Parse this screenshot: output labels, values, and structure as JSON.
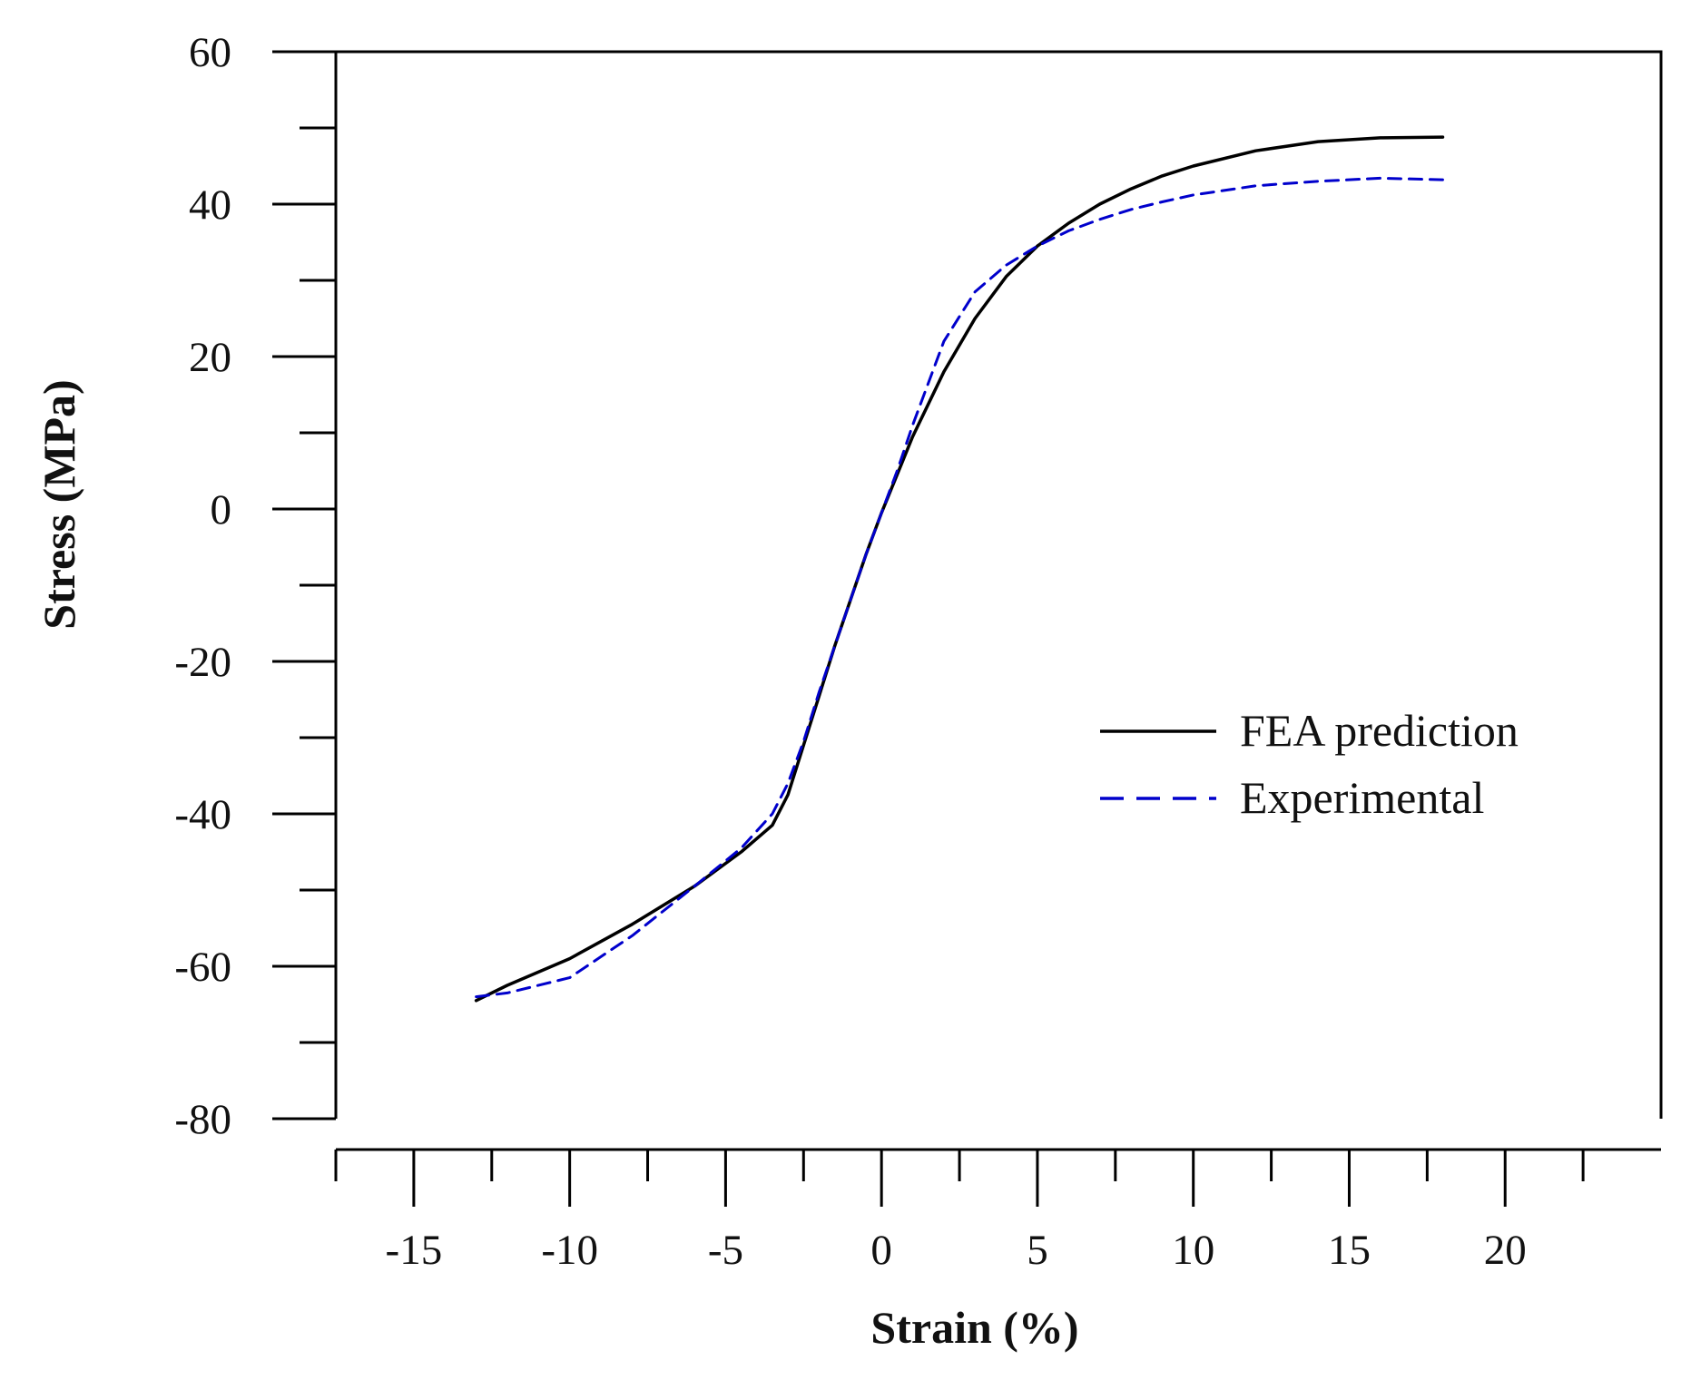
{
  "chart_data": {
    "type": "line",
    "title": "",
    "xlabel": "Strain (%)",
    "ylabel": "Stress (MPa)",
    "xlim": [
      -17.5,
      25
    ],
    "ylim": [
      -80,
      60
    ],
    "xticks_major": [
      -15,
      -10,
      -5,
      0,
      5,
      10,
      15,
      20
    ],
    "xticks_major_labels": [
      "-15",
      "-10",
      "-5",
      "0",
      "5",
      "10",
      "15",
      "20"
    ],
    "xticks_minor": [
      -17.5,
      -12.5,
      -7.5,
      -2.5,
      2.5,
      7.5,
      12.5,
      17.5,
      22.5
    ],
    "yticks_major": [
      -80,
      -60,
      -40,
      -20,
      0,
      20,
      40,
      60
    ],
    "yticks_major_labels": [
      "-80",
      "-60",
      "-40",
      "-20",
      "0",
      "20",
      "40",
      "60"
    ],
    "yticks_minor": [
      -70,
      -50,
      -30,
      -10,
      10,
      30,
      50
    ],
    "grid": false,
    "legend_position": "center-right",
    "series": [
      {
        "name": "FEA prediction",
        "color": "#000000",
        "style": "solid",
        "x": [
          -13,
          -12,
          -10,
          -8,
          -6,
          -4.5,
          -3.5,
          -3,
          -2.5,
          -2,
          -1.5,
          -1,
          -0.5,
          0,
          0.5,
          1,
          2,
          3,
          4,
          5,
          6,
          7,
          8,
          9,
          10,
          12,
          14,
          16,
          18
        ],
        "y": [
          -64.5,
          -62.5,
          -59,
          -54.5,
          -49.5,
          -45,
          -41.5,
          -37.5,
          -31,
          -24.5,
          -18,
          -12,
          -6,
          -0.5,
          4.5,
          9.5,
          18,
          25,
          30.5,
          34.5,
          37.5,
          40,
          42,
          43.7,
          45,
          47,
          48.2,
          48.7,
          48.8
        ]
      },
      {
        "name": "Experimental",
        "color": "#0000cc",
        "style": "dashed",
        "x": [
          -13,
          -12,
          -10,
          -8,
          -6,
          -4.5,
          -3.5,
          -3,
          -2.5,
          -2,
          -1.5,
          -1,
          -0.5,
          0,
          0.5,
          1,
          2,
          3,
          4,
          5,
          6,
          7,
          8,
          9,
          10,
          12,
          14,
          16,
          18
        ],
        "y": [
          -64,
          -63.5,
          -61.5,
          -56,
          -49.5,
          -44.5,
          -40,
          -36,
          -30.5,
          -24,
          -18,
          -12,
          -6,
          -0.5,
          5,
          11,
          22,
          28.5,
          32,
          34.5,
          36.5,
          38,
          39.3,
          40.3,
          41.2,
          42.4,
          43,
          43.4,
          43.2
        ]
      }
    ]
  }
}
